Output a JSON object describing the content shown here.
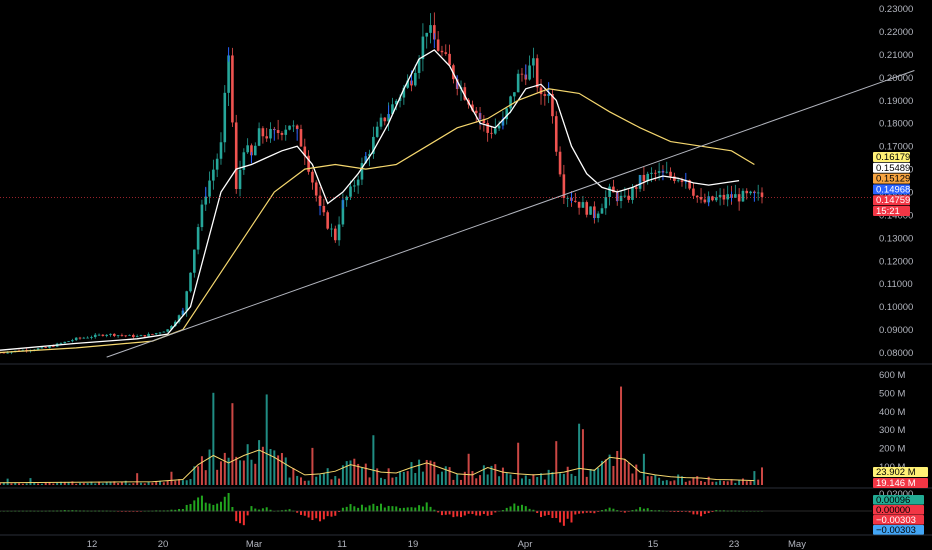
{
  "chart_data": {
    "type": "line",
    "chart_style": "candlestick",
    "grid": false,
    "background": "#000000",
    "colors": {
      "up": "#26a69a",
      "down": "#ef5350",
      "price_blue": "#2962ff",
      "ma_fast": "#ffffff",
      "ma_mid": "#f5d76e",
      "trendline": "#b2b5be",
      "hist_up": "#22a61f",
      "hist_down": "#f23030",
      "axis_text": "#b2b5be"
    },
    "x_axis": {
      "labels": [
        "12",
        "20",
        "Mar",
        "11",
        "19",
        "Apr",
        "15",
        "23",
        "May"
      ]
    },
    "price_pane": {
      "y_ticks": [
        "0.23000",
        "0.22000",
        "0.21000",
        "0.20000",
        "0.19000",
        "0.18000",
        "0.17000",
        "0.16000",
        "0.15000",
        "0.14000",
        "0.13000",
        "0.12000",
        "0.11000",
        "0.10000",
        "0.09000",
        "0.08000"
      ],
      "ylim": [
        0.075,
        0.232
      ],
      "price_tags": [
        {
          "label": "0.16179",
          "bg": "#fff176",
          "fg": "#000000"
        },
        {
          "label": "0.15489",
          "bg": "#ffffff",
          "fg": "#000000"
        },
        {
          "label": "0.15129",
          "bg": "#f7a440",
          "fg": "#000000"
        },
        {
          "label": "0.14968",
          "bg": "#2962ff",
          "fg": "#ffffff"
        },
        {
          "label": "0.14759",
          "bg": "#f23645",
          "fg": "#ffffff"
        },
        {
          "label": "15:21",
          "bg": "#f23645",
          "fg": "#ffffff"
        }
      ],
      "price_path": {
        "x_days": [
          0,
          6,
          10,
          14,
          18,
          20,
          22,
          24,
          26,
          27,
          28,
          29,
          30,
          31,
          32,
          33,
          34,
          36,
          38,
          39,
          40,
          42,
          44,
          45,
          46,
          48,
          50,
          52,
          54,
          56,
          58,
          60,
          62,
          64,
          66,
          68,
          70,
          71,
          72,
          73,
          74,
          76,
          78,
          80,
          82,
          84,
          86,
          88,
          90,
          92,
          94,
          96,
          98,
          100
        ],
        "close": [
          0.08,
          0.082,
          0.086,
          0.088,
          0.087,
          0.088,
          0.09,
          0.098,
          0.135,
          0.15,
          0.16,
          0.17,
          0.21,
          0.15,
          0.17,
          0.165,
          0.175,
          0.175,
          0.18,
          0.175,
          0.168,
          0.142,
          0.13,
          0.145,
          0.15,
          0.165,
          0.18,
          0.19,
          0.2,
          0.222,
          0.21,
          0.198,
          0.188,
          0.176,
          0.18,
          0.2,
          0.205,
          0.19,
          0.195,
          0.17,
          0.15,
          0.145,
          0.14,
          0.15,
          0.146,
          0.155,
          0.158,
          0.157,
          0.156,
          0.145,
          0.147,
          0.148,
          0.148,
          0.148
        ]
      },
      "ma_fast_path": {
        "x_days": [
          0,
          10,
          18,
          22,
          25,
          27,
          29,
          31,
          33,
          35,
          37,
          39,
          41,
          43,
          45,
          47,
          49,
          51,
          53,
          55,
          57,
          59,
          61,
          63,
          65,
          67,
          69,
          71,
          73,
          75,
          77,
          79,
          81,
          83,
          85,
          87,
          89,
          91,
          93,
          95,
          97
        ],
        "values": [
          0.081,
          0.084,
          0.086,
          0.088,
          0.1,
          0.125,
          0.15,
          0.16,
          0.162,
          0.165,
          0.168,
          0.17,
          0.162,
          0.145,
          0.15,
          0.158,
          0.168,
          0.18,
          0.195,
          0.208,
          0.212,
          0.205,
          0.192,
          0.18,
          0.178,
          0.185,
          0.195,
          0.197,
          0.19,
          0.17,
          0.158,
          0.152,
          0.15,
          0.152,
          0.155,
          0.157,
          0.156,
          0.154,
          0.153,
          0.154,
          0.155
        ]
      },
      "ma_mid_path": {
        "x_days": [
          0,
          10,
          20,
          24,
          28,
          32,
          36,
          40,
          44,
          48,
          52,
          56,
          60,
          64,
          68,
          72,
          76,
          80,
          84,
          88,
          92,
          96,
          99
        ],
        "values": [
          0.08,
          0.082,
          0.085,
          0.09,
          0.11,
          0.13,
          0.15,
          0.16,
          0.162,
          0.16,
          0.162,
          0.17,
          0.178,
          0.182,
          0.19,
          0.195,
          0.193,
          0.185,
          0.178,
          0.172,
          0.17,
          0.168,
          0.162
        ]
      },
      "trendline": {
        "start": {
          "x_day": 14,
          "value": 0.078
        },
        "end": {
          "x_day": 120,
          "value": 0.203
        }
      }
    },
    "volume_pane": {
      "y_ticks": [
        "600 M",
        "500 M",
        "400 M",
        "300 M",
        "200 M",
        "100 M"
      ],
      "ylim": [
        0,
        640
      ],
      "value_tags": [
        {
          "label": "23.902 M",
          "bg": "#fff176",
          "fg": "#000000"
        },
        {
          "label": "19.146 M",
          "bg": "#f23645",
          "fg": "#ffffff"
        }
      ],
      "volume_ma_path": {
        "x_days": [
          0,
          10,
          20,
          24,
          26,
          28,
          30,
          32,
          34,
          36,
          38,
          40,
          42,
          44,
          46,
          48,
          50,
          52,
          54,
          56,
          58,
          60,
          62,
          64,
          66,
          68,
          70,
          72,
          74,
          76,
          78,
          80,
          82,
          84,
          86,
          88,
          90,
          92,
          94,
          96,
          99
        ],
        "values": [
          12,
          15,
          18,
          30,
          110,
          160,
          120,
          160,
          190,
          150,
          100,
          55,
          60,
          75,
          110,
          90,
          70,
          65,
          95,
          120,
          90,
          60,
          55,
          95,
          70,
          60,
          55,
          60,
          70,
          90,
          80,
          150,
          140,
          70,
          55,
          45,
          40,
          38,
          30,
          28,
          24
        ]
      }
    },
    "oscillator_pane": {
      "y_ticks": [
        "0.02000"
      ],
      "value_tags": [
        {
          "label": "0.00096",
          "bg": "#22ab94",
          "fg": "#000000"
        },
        {
          "label": "0.00000",
          "bg": "#f23645",
          "fg": "#000000"
        },
        {
          "label": "−0.00303",
          "bg": "#f23645",
          "fg": "#ffffff"
        },
        {
          "label": "−0.00303",
          "bg": "#42a5f5",
          "fg": "#000000"
        }
      ]
    }
  }
}
